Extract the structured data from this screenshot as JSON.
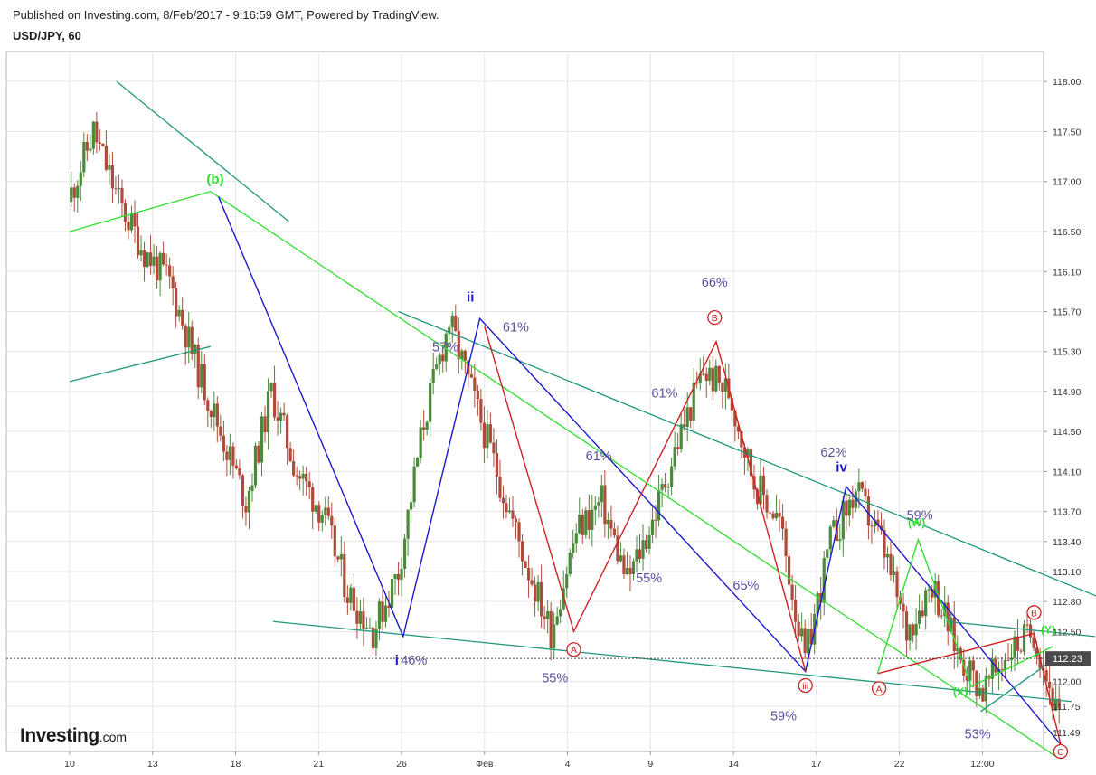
{
  "header": {
    "published": "Published on Investing.com, 8/Feb/2017 - 9:16:59 GMT, Powered by TradingView.",
    "symbol": "USD/JPY, 60"
  },
  "logo": {
    "name": "Investing",
    "suffix": ".com"
  },
  "colors": {
    "blue": "#1a1acc",
    "green": "#33dd33",
    "teal": "#22987a",
    "red": "#cc2222",
    "candle_up": "#4a8a3a",
    "candle_down": "#b04a3a",
    "pct": "#5b4fa0",
    "last_tag": "#4a4a4a"
  },
  "chart_data": {
    "type": "candlestick",
    "title": "USD/JPY, 60",
    "ylim": [
      111.3,
      118.3
    ],
    "y_ticks": [
      118.0,
      117.5,
      117.0,
      116.5,
      116.1,
      115.7,
      115.3,
      114.9,
      114.5,
      114.1,
      113.7,
      113.4,
      113.1,
      112.8,
      112.5,
      112.0,
      111.75,
      111.49
    ],
    "y_tick_labels": [
      "118.00",
      "117.50",
      "117.00",
      "116.50",
      "116.10",
      "115.70",
      "115.30",
      "114.90",
      "114.50",
      "114.10",
      "113.70",
      "113.40",
      "113.10",
      "112.80",
      "112.50",
      "112.00",
      "111.75",
      "111.49"
    ],
    "x_tick_labels": [
      "10",
      "13",
      "18",
      "21",
      "26",
      "Фев",
      "4",
      "9",
      "14",
      "17",
      "22",
      "12:00"
    ],
    "last_price": "112.23",
    "last_price_value": 112.23,
    "path_points": [
      116.8,
      117.5,
      116.8,
      116.3,
      116.0,
      115.2,
      114.5,
      113.8,
      114.9,
      114.1,
      113.7,
      112.9,
      112.5,
      113.1,
      114.6,
      115.6,
      114.8,
      114.0,
      113.2,
      112.5,
      113.5,
      113.8,
      113.0,
      113.6,
      114.4,
      115.1,
      114.9,
      114.0,
      113.6,
      112.2,
      113.4,
      113.9,
      113.4,
      112.5,
      113.0,
      112.3,
      111.9,
      112.3,
      112.5,
      111.6
    ],
    "channels": [
      {
        "color": "teal",
        "points": [
          [
            3,
            118.0
          ],
          [
            14,
            116.6
          ]
        ]
      },
      {
        "color": "green",
        "points": [
          [
            0,
            116.5
          ],
          [
            9,
            116.9
          ]
        ]
      },
      {
        "color": "teal",
        "points": [
          [
            0,
            115.0
          ],
          [
            9,
            115.35
          ]
        ]
      },
      {
        "color": "green",
        "points": [
          [
            9,
            116.9
          ],
          [
            63,
            111.25
          ]
        ]
      },
      {
        "color": "teal",
        "points": [
          [
            21,
            115.7
          ],
          [
            68,
            112.7
          ]
        ]
      },
      {
        "color": "teal",
        "points": [
          [
            13,
            112.6
          ],
          [
            64,
            111.8
          ]
        ]
      },
      {
        "color": "teal",
        "points": [
          [
            56,
            112.6
          ],
          [
            65.5,
            112.45
          ]
        ]
      }
    ],
    "waves": [
      {
        "color": "blue",
        "points": [
          [
            9.5,
            116.85
          ],
          [
            21.3,
            112.45
          ],
          [
            26.2,
            115.63
          ],
          [
            47,
            112.1
          ],
          [
            49.6,
            113.95
          ],
          [
            63.3,
            111.37
          ]
        ]
      },
      {
        "color": "red",
        "points": [
          [
            26.5,
            115.55
          ],
          [
            32.2,
            112.5
          ],
          [
            41.3,
            115.4
          ],
          [
            47,
            112.1
          ]
        ]
      },
      {
        "color": "red",
        "points": [
          [
            51.6,
            112.08
          ],
          [
            61.6,
            112.48
          ],
          [
            63.3,
            111.37
          ]
        ]
      },
      {
        "color": "green",
        "points": [
          [
            51.6,
            112.08
          ],
          [
            54.2,
            113.42
          ],
          [
            57.6,
            111.95
          ],
          [
            62.8,
            112.35
          ]
        ]
      },
      {
        "color": "teal",
        "points": [
          [
            58.2,
            111.7
          ],
          [
            63.1,
            112.25
          ]
        ]
      }
    ],
    "wave_labels": [
      {
        "text": "(b)",
        "x": 9.3,
        "y": 116.98,
        "color": "green",
        "size": 15
      },
      {
        "text": "ii",
        "x": 25.6,
        "y": 115.8,
        "color": "blue",
        "size": 15
      },
      {
        "text": "i",
        "x": 20.9,
        "y": 112.17,
        "color": "blue",
        "size": 15
      },
      {
        "text": "iv",
        "x": 49.3,
        "y": 114.1,
        "color": "blue",
        "size": 15
      },
      {
        "text": "(W)",
        "x": 54.1,
        "y": 113.55,
        "color": "green",
        "size": 12
      },
      {
        "text": "(X)",
        "x": 56.9,
        "y": 111.86,
        "color": "green",
        "size": 12
      },
      {
        "text": "(Y)",
        "x": 62.5,
        "y": 112.48,
        "color": "green",
        "size": 12
      }
    ],
    "circle_labels": [
      {
        "text": "B",
        "x": 41.2,
        "y": 115.64,
        "color": "red"
      },
      {
        "text": "A",
        "x": 32.2,
        "y": 112.32,
        "color": "red"
      },
      {
        "text": "iii",
        "x": 47,
        "y": 111.96,
        "color": "red"
      },
      {
        "text": "A",
        "x": 51.7,
        "y": 111.93,
        "color": "red"
      },
      {
        "text": "B",
        "x": 61.6,
        "y": 112.69,
        "color": "red"
      },
      {
        "text": "C",
        "x": 63.3,
        "y": 111.3,
        "color": "red"
      }
    ],
    "annotations": [
      {
        "text": "66%",
        "x": 41.2,
        "y": 115.95
      },
      {
        "text": "61%",
        "x": 28.5,
        "y": 115.5
      },
      {
        "text": "57%",
        "x": 24.0,
        "y": 115.3
      },
      {
        "text": "61%",
        "x": 38.0,
        "y": 114.84
      },
      {
        "text": "61%",
        "x": 33.8,
        "y": 114.21
      },
      {
        "text": "62%",
        "x": 48.8,
        "y": 114.25
      },
      {
        "text": "59%",
        "x": 54.3,
        "y": 113.62
      },
      {
        "text": "65%",
        "x": 43.2,
        "y": 112.92
      },
      {
        "text": "55%",
        "x": 37.0,
        "y": 112.99
      },
      {
        "text": "46%",
        "x": 22.0,
        "y": 112.17
      },
      {
        "text": "55%",
        "x": 31.0,
        "y": 111.99
      },
      {
        "text": "59%",
        "x": 45.6,
        "y": 111.61
      },
      {
        "text": "53%",
        "x": 58.0,
        "y": 111.43
      }
    ]
  }
}
